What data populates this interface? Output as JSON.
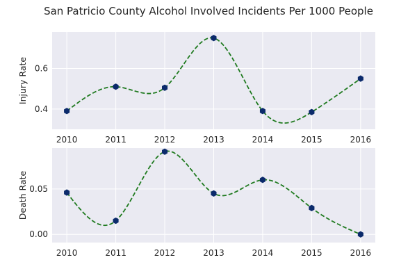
{
  "chart_data": {
    "title": "San Patricio County Alcohol Involved Incidents Per 1000 People",
    "colors": {
      "plot_background": "#eaeaf2",
      "grid": "#ffffff",
      "line": "#1f7a1f",
      "marker": "#0b2a6b"
    },
    "panels": [
      {
        "type": "line",
        "name": "injury",
        "ylabel": "Injury Rate",
        "x": [
          2010,
          2011,
          2012,
          2013,
          2014,
          2015,
          2016
        ],
        "y": [
          0.39,
          0.51,
          0.505,
          0.75,
          0.39,
          0.385,
          0.55
        ],
        "ylim": [
          0.3,
          0.78
        ],
        "yticks": [
          0.4,
          0.6
        ],
        "xticks": [
          2010,
          2011,
          2012,
          2013,
          2014,
          2015,
          2016
        ],
        "line_style": "dashed smooth curve",
        "markers": "hexagon",
        "grid": true
      },
      {
        "type": "line",
        "name": "death",
        "ylabel": "Death Rate",
        "x": [
          2010,
          2011,
          2012,
          2013,
          2014,
          2015,
          2016
        ],
        "y": [
          0.046,
          0.015,
          0.091,
          0.045,
          0.06,
          0.029,
          0.0
        ],
        "ylim": [
          -0.009,
          0.095
        ],
        "yticks": [
          0.0,
          0.05
        ],
        "yticklabels": [
          "0.00",
          "0.05"
        ],
        "xticks": [
          2010,
          2011,
          2012,
          2013,
          2014,
          2015,
          2016
        ],
        "line_style": "dashed smooth curve",
        "markers": "hexagon",
        "grid": true
      }
    ]
  }
}
